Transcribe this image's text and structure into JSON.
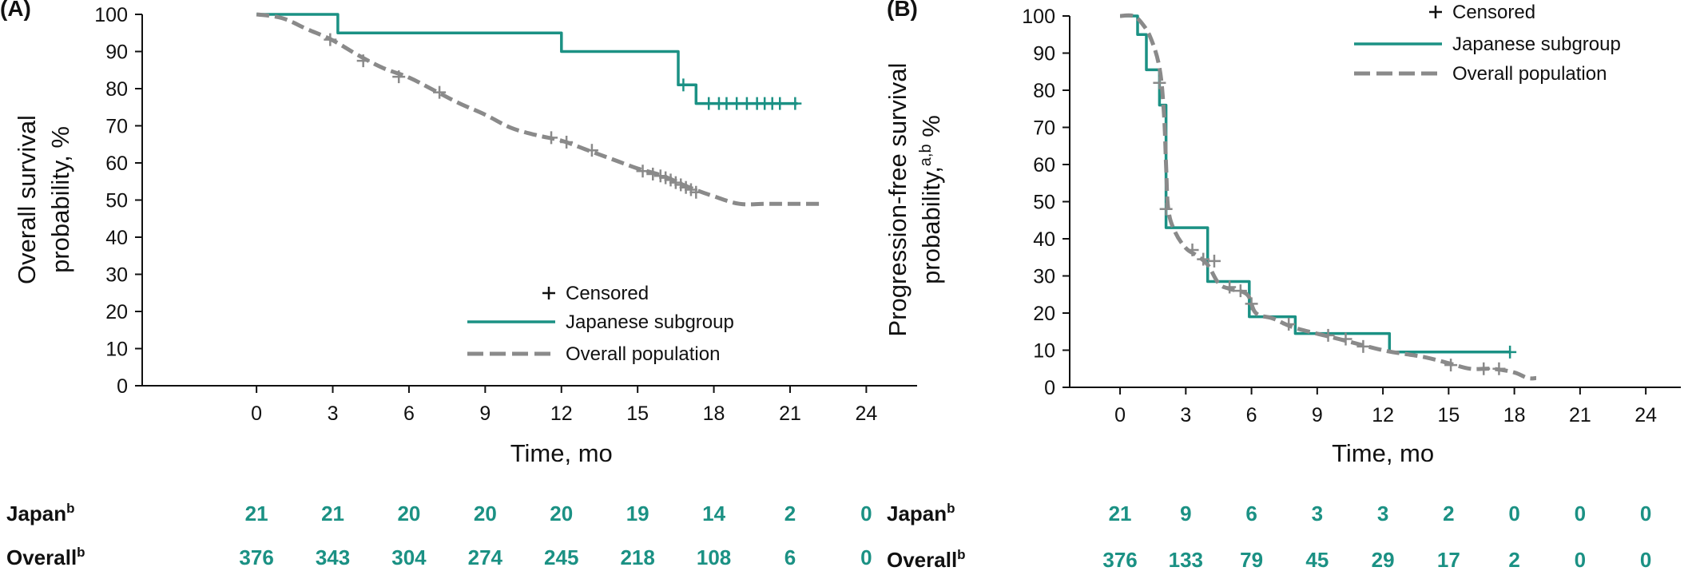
{
  "colors": {
    "japan": "#1b9184",
    "overall": "#8a8a8a",
    "axis": "#111111"
  },
  "chart_data": [
    {
      "type": "line",
      "panel_label": "(A)",
      "ylabel_line1": "Overall survival",
      "ylabel_line2": "probability, %",
      "ylabel_sup": "",
      "xlabel": "Time, mo",
      "x_ticks": [
        0,
        3,
        6,
        9,
        12,
        15,
        18,
        21,
        24
      ],
      "y_ticks": [
        0,
        10,
        20,
        30,
        40,
        50,
        60,
        70,
        80,
        90,
        100
      ],
      "xlim": [
        -4.5,
        26
      ],
      "ylim": [
        0,
        100
      ],
      "legend": {
        "censored": "Censored",
        "japan": "Japanese subgroup",
        "overall": "Overall population",
        "position": "lower-right"
      },
      "series": [
        {
          "name": "Japanese subgroup",
          "style": "step",
          "points": [
            [
              0,
              100
            ],
            [
              3.2,
              100
            ],
            [
              3.2,
              95
            ],
            [
              12,
              95
            ],
            [
              12,
              90
            ],
            [
              16.6,
              90
            ],
            [
              16.6,
              81
            ],
            [
              17.3,
              81
            ],
            [
              17.3,
              76
            ],
            [
              21.3,
              76
            ]
          ],
          "censor_x": [
            16.8,
            17.8,
            18.2,
            18.5,
            18.9,
            19.3,
            19.7,
            20.0,
            20.3,
            20.6,
            21.2
          ],
          "censor_y": [
            81,
            76,
            76,
            76,
            76,
            76,
            76,
            76,
            76,
            76,
            76
          ]
        },
        {
          "name": "Overall population",
          "style": "smooth",
          "points": [
            [
              0,
              100
            ],
            [
              1,
              99
            ],
            [
              2,
              96
            ],
            [
              3,
              93
            ],
            [
              4,
              89
            ],
            [
              5,
              85.5
            ],
            [
              6,
              83
            ],
            [
              7,
              79.5
            ],
            [
              8,
              76
            ],
            [
              9,
              73
            ],
            [
              10,
              69.5
            ],
            [
              11,
              67.5
            ],
            [
              12,
              66
            ],
            [
              13,
              63.5
            ],
            [
              14,
              61
            ],
            [
              15,
              58.5
            ],
            [
              16,
              56.5
            ],
            [
              17,
              53.5
            ],
            [
              18,
              51
            ],
            [
              19,
              49
            ],
            [
              20,
              49
            ],
            [
              21,
              49
            ],
            [
              22.3,
              49
            ]
          ],
          "censor_x": [
            2.9,
            4.2,
            5.6,
            7.2,
            11.6,
            12.2,
            13.2,
            15.2,
            15.6,
            15.9,
            16.1,
            16.3,
            16.5,
            16.7,
            16.9,
            17.1,
            17.3
          ],
          "censor_y": [
            93.2,
            87.5,
            83.2,
            79,
            66.8,
            65.6,
            63.4,
            57.8,
            57,
            56.5,
            56,
            55.4,
            54.7,
            54.1,
            53.4,
            52.8,
            52.1
          ]
        }
      ],
      "risk_table": {
        "rows": [
          {
            "label": "Japan",
            "sup": "b",
            "values": [
              "21",
              "21",
              "20",
              "20",
              "20",
              "19",
              "14",
              "2",
              "0"
            ]
          },
          {
            "label": "Overall",
            "sup": "b",
            "values": [
              "376",
              "343",
              "304",
              "274",
              "245",
              "218",
              "108",
              "6",
              "0"
            ]
          }
        ]
      }
    },
    {
      "type": "line",
      "panel_label": "(B)",
      "ylabel_line1": "Progression-free survival",
      "ylabel_line2": "probability,",
      "ylabel_sup": "a,b",
      "ylabel_suffix": " %",
      "xlabel": "Time, mo",
      "x_ticks": [
        0,
        3,
        6,
        9,
        12,
        15,
        18,
        21,
        24
      ],
      "y_ticks": [
        0,
        10,
        20,
        30,
        40,
        50,
        60,
        70,
        80,
        90,
        100
      ],
      "xlim": [
        -2.3,
        25.6
      ],
      "ylim": [
        0,
        100
      ],
      "legend": {
        "censored": "Censored",
        "japan": "Japanese subgroup",
        "overall": "Overall population",
        "position": "top-right"
      },
      "series": [
        {
          "name": "Japanese subgroup",
          "style": "step",
          "points": [
            [
              0,
              100
            ],
            [
              0.8,
              100
            ],
            [
              0.8,
              95
            ],
            [
              1.2,
              95
            ],
            [
              1.2,
              85.5
            ],
            [
              1.8,
              85.5
            ],
            [
              1.8,
              76
            ],
            [
              2.1,
              76
            ],
            [
              2.1,
              43
            ],
            [
              4,
              43
            ],
            [
              4,
              28.5
            ],
            [
              5.9,
              28.5
            ],
            [
              5.9,
              19
            ],
            [
              8,
              19
            ],
            [
              8,
              14.5
            ],
            [
              12.3,
              14.5
            ],
            [
              12.3,
              9.5
            ],
            [
              17.8,
              9.5
            ]
          ],
          "censor_x": [
            17.8
          ],
          "censor_y": [
            9.5
          ]
        },
        {
          "name": "Overall population",
          "style": "smooth",
          "points": [
            [
              0,
              100
            ],
            [
              0.6,
              100
            ],
            [
              1.0,
              98
            ],
            [
              1.4,
              94
            ],
            [
              1.8,
              86
            ],
            [
              2.0,
              74
            ],
            [
              2.1,
              60
            ],
            [
              2.2,
              48
            ],
            [
              2.5,
              42
            ],
            [
              3.0,
              37.5
            ],
            [
              3.5,
              35.5
            ],
            [
              4.0,
              33
            ],
            [
              4.5,
              28
            ],
            [
              5.0,
              26.5
            ],
            [
              5.8,
              25
            ],
            [
              6.2,
              20
            ],
            [
              7.0,
              18.5
            ],
            [
              8.0,
              16
            ],
            [
              10,
              13
            ],
            [
              12,
              10
            ],
            [
              13,
              9
            ],
            [
              14,
              8
            ],
            [
              15,
              6.5
            ],
            [
              16,
              5
            ],
            [
              17,
              5
            ],
            [
              18,
              4
            ],
            [
              18.6,
              2.5
            ],
            [
              19,
              2.5
            ]
          ],
          "censor_x": [
            1.8,
            2.1,
            3.3,
            3.8,
            4.3,
            5.0,
            5.5,
            6.0,
            7.7,
            9.5,
            10.3,
            11.1,
            15.1,
            16.6,
            17.3
          ],
          "censor_y": [
            82,
            48,
            37,
            34.5,
            34,
            27,
            26,
            22.5,
            17,
            14,
            13,
            11,
            6,
            5,
            5
          ]
        }
      ],
      "risk_table": {
        "rows": [
          {
            "label": "Japan",
            "sup": "b",
            "values": [
              "21",
              "9",
              "6",
              "3",
              "3",
              "2",
              "0",
              "0",
              "0"
            ]
          },
          {
            "label": "Overall",
            "sup": "b",
            "values": [
              "376",
              "133",
              "79",
              "45",
              "29",
              "17",
              "2",
              "0",
              "0"
            ]
          }
        ]
      }
    }
  ]
}
